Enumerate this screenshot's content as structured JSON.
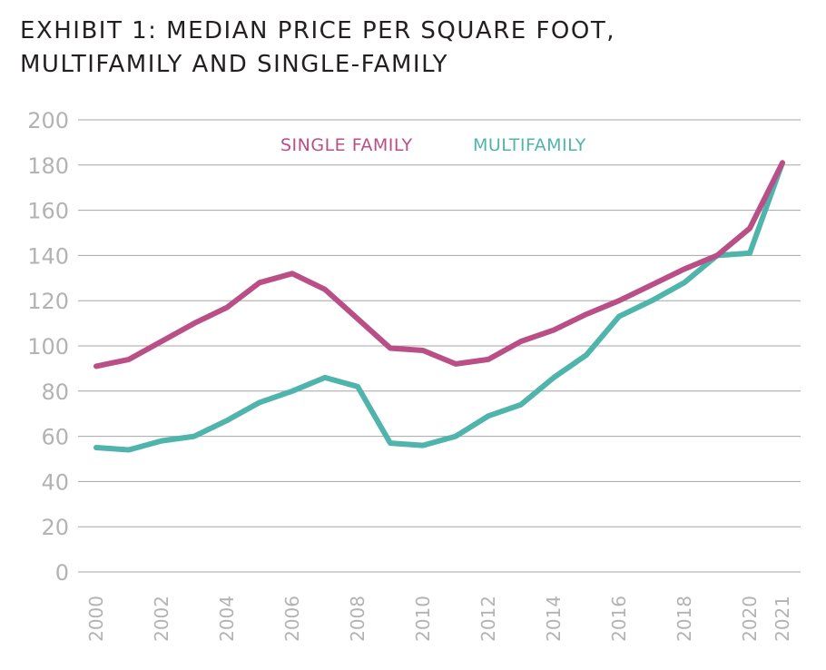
{
  "title": {
    "line1": "EXHIBIT 1: MEDIAN PRICE PER SQUARE FOOT,",
    "line2": "MULTIFAMILY AND SINGLE-FAMILY"
  },
  "chart_data": {
    "type": "line",
    "title": "EXHIBIT 1: MEDIAN PRICE PER SQUARE FOOT, MULTIFAMILY AND SINGLE-FAMILY",
    "xlabel": "",
    "ylabel": "",
    "ylim": [
      0,
      200
    ],
    "yticks": [
      0,
      20,
      40,
      60,
      80,
      100,
      120,
      140,
      160,
      180,
      200
    ],
    "xticks": [
      2000,
      2002,
      2004,
      2006,
      2008,
      2010,
      2012,
      2014,
      2016,
      2018,
      2020,
      2021
    ],
    "grid": "horizontal",
    "legend_position": "top-center",
    "x": [
      2000,
      2001,
      2002,
      2003,
      2004,
      2005,
      2006,
      2007,
      2008,
      2009,
      2010,
      2011,
      2012,
      2013,
      2014,
      2015,
      2016,
      2017,
      2018,
      2019,
      2020,
      2021
    ],
    "series": [
      {
        "name": "SINGLE FAMILY",
        "color": "#b94f86",
        "values": [
          91,
          94,
          102,
          110,
          117,
          128,
          132,
          125,
          112,
          99,
          98,
          92,
          94,
          102,
          107,
          114,
          120,
          127,
          134,
          140,
          152,
          181
        ]
      },
      {
        "name": "MULTIFAMILY",
        "color": "#4fb4ab",
        "values": [
          55,
          54,
          58,
          60,
          67,
          75,
          80,
          86,
          82,
          57,
          56,
          60,
          69,
          74,
          86,
          96,
          113,
          120,
          128,
          140,
          141,
          181
        ]
      }
    ]
  },
  "colors": {
    "grid": "#a6a6a6",
    "tick_label": "#b3b3b3",
    "title": "#231f20"
  }
}
